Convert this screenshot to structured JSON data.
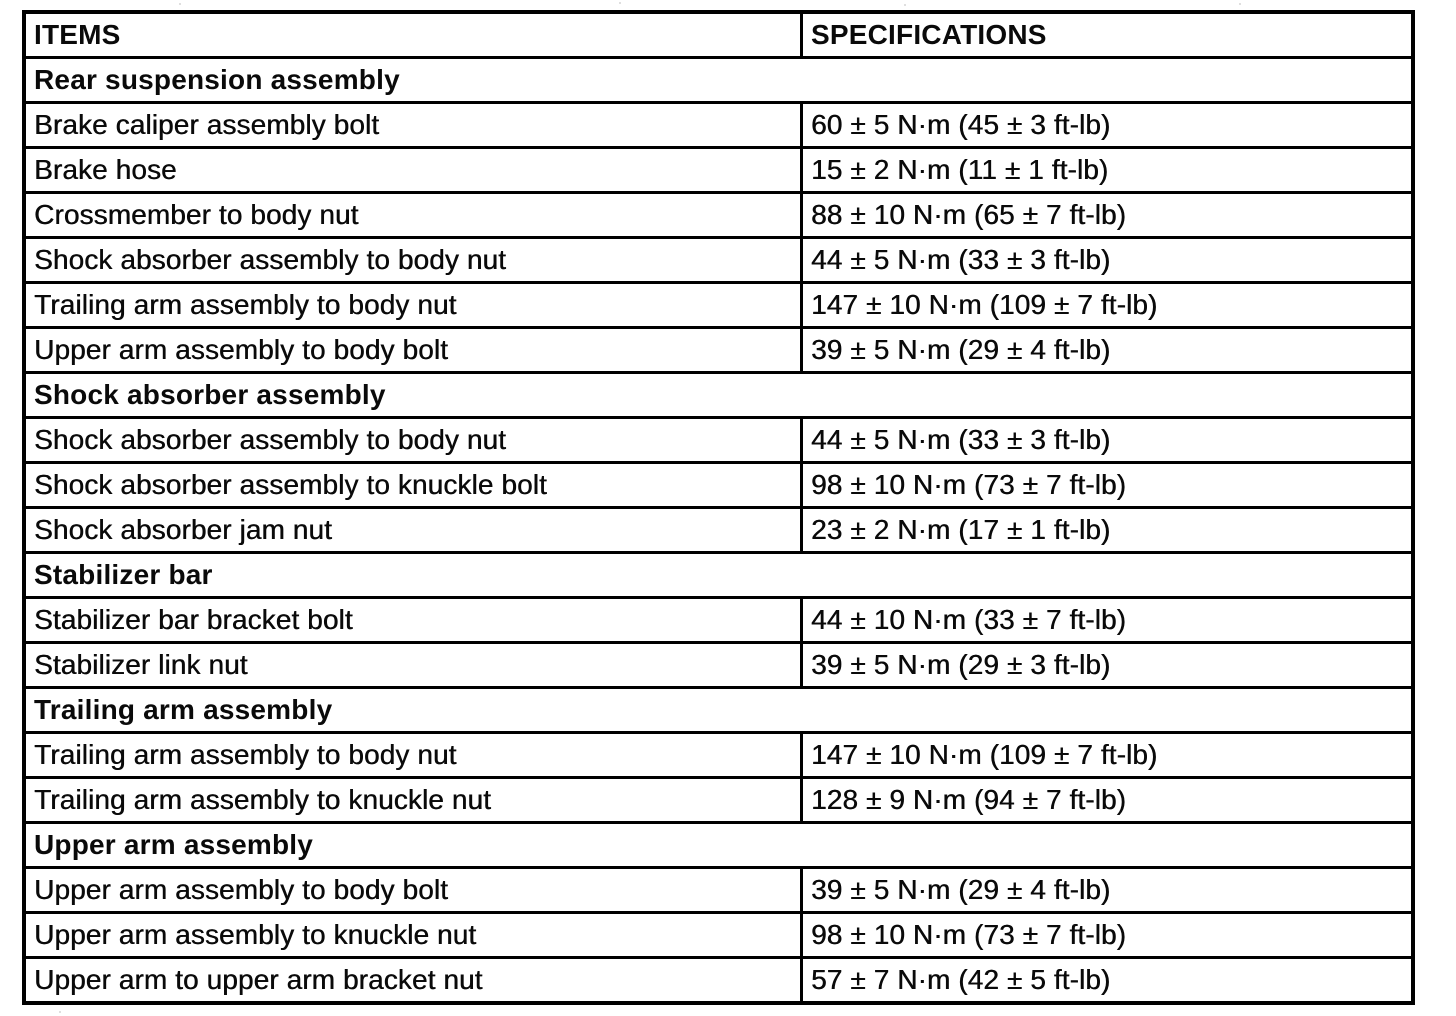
{
  "table": {
    "colors": {
      "ink": "#0a0a0a",
      "paper": "#ffffff",
      "border": "#000000"
    },
    "header": {
      "items_label": "ITEMS",
      "spec_label": "SPECIFICATIONS"
    },
    "sections": [
      {
        "title": "Rear suspension assembly",
        "rows": [
          {
            "item": "Brake caliper assembly bolt",
            "spec": "60 ± 5 N·m (45 ± 3 ft-lb)"
          },
          {
            "item": "Brake hose",
            "spec": "15 ± 2 N·m (11 ± 1 ft-lb)"
          },
          {
            "item": "Crossmember to body nut",
            "spec": "88 ± 10 N·m (65 ± 7 ft-lb)"
          },
          {
            "item": "Shock absorber assembly to body nut",
            "spec": "44 ± 5 N·m (33 ± 3 ft-lb)"
          },
          {
            "item": "Trailing arm assembly to body nut",
            "spec": "147 ± 10 N·m (109 ± 7 ft-lb)"
          },
          {
            "item": "Upper arm assembly to body bolt",
            "spec": "39 ± 5 N·m (29 ± 4 ft-lb)"
          }
        ]
      },
      {
        "title": "Shock absorber assembly",
        "rows": [
          {
            "item": "Shock absorber assembly to body nut",
            "spec": "44 ± 5 N·m (33 ± 3 ft-lb)"
          },
          {
            "item": "Shock absorber assembly to knuckle bolt",
            "spec": "98 ± 10 N·m (73 ± 7 ft-lb)"
          },
          {
            "item": "Shock absorber jam nut",
            "spec": "23 ± 2 N·m (17 ± 1 ft-lb)"
          }
        ]
      },
      {
        "title": "Stabilizer bar",
        "rows": [
          {
            "item": "Stabilizer bar bracket bolt",
            "spec": "44 ± 10 N·m (33 ± 7 ft-lb)"
          },
          {
            "item": "Stabilizer link nut",
            "spec": "39 ± 5 N·m (29 ± 3 ft-lb)"
          }
        ]
      },
      {
        "title": "Trailing arm assembly",
        "rows": [
          {
            "item": "Trailing arm assembly to body nut",
            "spec": "147 ± 10 N·m (109 ± 7 ft-lb)"
          },
          {
            "item": "Trailing arm assembly to knuckle nut",
            "spec": "128 ± 9 N·m (94 ± 7 ft-lb)"
          }
        ]
      },
      {
        "title": "Upper arm assembly",
        "rows": [
          {
            "item": "Upper arm assembly to body bolt",
            "spec": "39 ± 5 N·m (29 ± 4 ft-lb)"
          },
          {
            "item": "Upper arm assembly to knuckle nut",
            "spec": "98 ± 10 N·m (73 ± 7 ft-lb)"
          },
          {
            "item": "Upper arm to upper arm bracket nut",
            "spec": "57 ± 7 N·m (42 ± 5 ft-lb)"
          }
        ]
      }
    ]
  }
}
